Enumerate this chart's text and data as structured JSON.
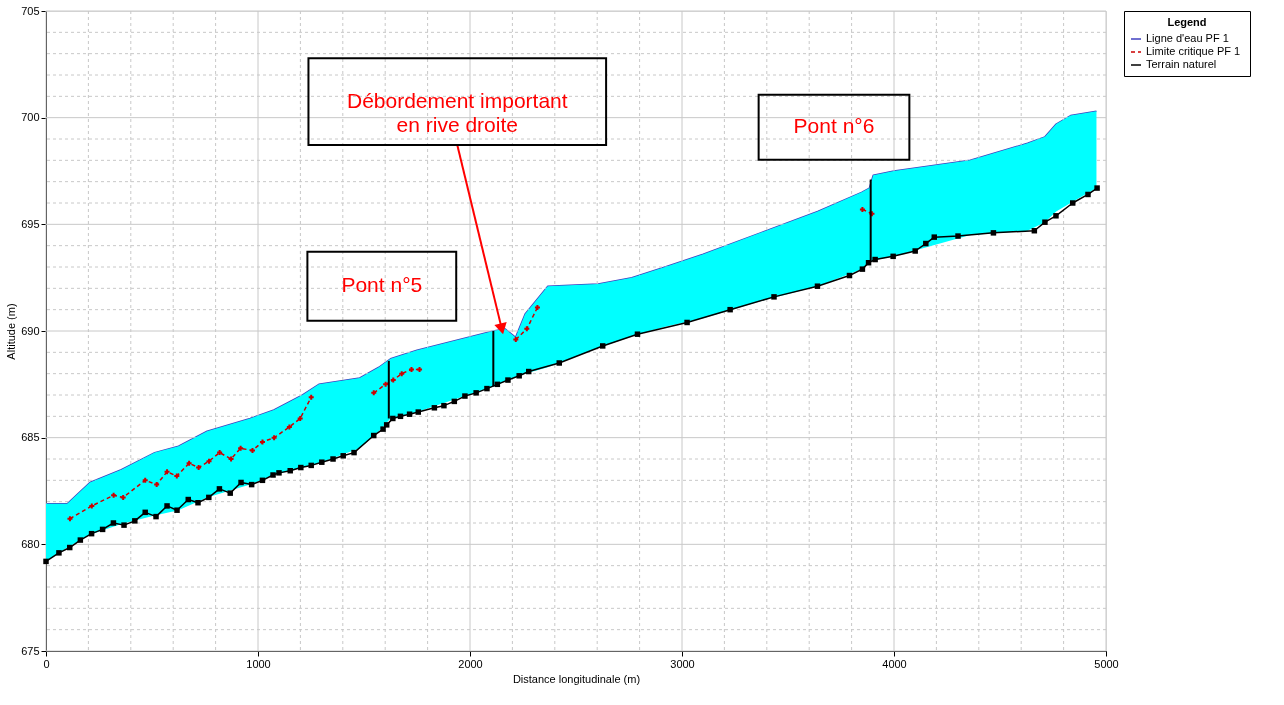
{
  "chart_data": {
    "type": "line",
    "xlabel": "Distance longitudinale (m)",
    "ylabel": "Altitude (m)",
    "legend_title": "Legend",
    "legend": "top right",
    "grid": true,
    "xlim": [
      0,
      5000
    ],
    "ylim": [
      675,
      705
    ],
    "xticks": [
      0,
      {
        "value": 200,
        "label": null
      },
      {
        "value": 400,
        "label": null
      },
      {
        "value": 600,
        "label": null
      },
      {
        "value": 800,
        "label": null
      },
      1000,
      {
        "value": 1200,
        "label": null
      },
      {
        "value": 1400,
        "label": null
      },
      {
        "value": 1600,
        "label": null
      },
      {
        "value": 1800,
        "label": null
      },
      2000,
      {
        "value": 2200,
        "label": null
      },
      {
        "value": 2400,
        "label": null
      },
      {
        "value": 2600,
        "label": null
      },
      {
        "value": 2800,
        "label": null
      },
      3000,
      {
        "value": 3200,
        "label": null
      },
      {
        "value": 3400,
        "label": null
      },
      {
        "value": 3600,
        "label": null
      },
      {
        "value": 3800,
        "label": null
      },
      4000,
      {
        "value": 4200,
        "label": null
      },
      {
        "value": 4400,
        "label": null
      },
      {
        "value": 4600,
        "label": null
      },
      {
        "value": 4800,
        "label": null
      },
      5000
    ],
    "yticks": [
      675,
      {
        "value": 676,
        "label": null
      },
      {
        "value": 677,
        "label": null
      },
      {
        "value": 678,
        "label": null
      },
      {
        "value": 679,
        "label": null
      },
      680,
      {
        "value": 681,
        "label": null
      },
      {
        "value": 682,
        "label": null
      },
      {
        "value": 683,
        "label": null
      },
      {
        "value": 684,
        "label": null
      },
      685,
      {
        "value": 686,
        "label": null
      },
      {
        "value": 687,
        "label": null
      },
      {
        "value": 688,
        "label": null
      },
      {
        "value": 689,
        "label": null
      },
      690,
      {
        "value": 691,
        "label": null
      },
      {
        "value": 692,
        "label": null
      },
      {
        "value": 693,
        "label": null
      },
      {
        "value": 694,
        "label": null
      },
      695,
      {
        "value": 696,
        "label": null
      },
      {
        "value": 697,
        "label": null
      },
      {
        "value": 698,
        "label": null
      },
      {
        "value": 699,
        "label": null
      },
      700,
      {
        "value": 701,
        "label": null
      },
      {
        "value": 702,
        "label": null
      },
      {
        "value": 703,
        "label": null
      },
      {
        "value": 704,
        "label": null
      },
      705
    ],
    "annotations": [
      {
        "text": "Débordement important\nen rive droite",
        "x": 2150,
        "y": 690.1
      },
      "Pont n°5",
      "Pont n°6"
    ],
    "series": [
      {
        "color": "#000000",
        "marker": "none",
        "x": [
          1617,
          1617
        ],
        "values": [
          685.9,
          688.6
        ]
      },
      {
        "color": "#000000",
        "marker": "none",
        "x": [
          2110,
          2110
        ],
        "values": [
          687.4,
          690.0
        ]
      },
      {
        "color": "#000000",
        "marker": "none",
        "x": [
          3890,
          3890
        ],
        "values": [
          693.3,
          697.1
        ]
      },
      {
        "name": "Ligne d'eau  PF 1",
        "color": "#4040c0",
        "marker": "none",
        "line_style": "solid",
        "x": [
          0,
          100,
          207,
          355,
          513,
          625,
          760,
          963,
          1075,
          1210,
          1287,
          1480,
          1570,
          1625,
          1750,
          2110,
          2165,
          2215,
          2260,
          2367,
          2605,
          2763,
          2920,
          3100,
          3370,
          3640,
          3847,
          3884,
          3902,
          4000,
          4360,
          4630,
          4712,
          4765,
          4833,
          4955
        ],
        "lower": [
          679.2,
          679.85,
          680.45,
          680.95,
          681.35,
          681.6,
          682.2,
          682.8,
          683.25,
          683.6,
          683.8,
          684.5,
          685.3,
          685.9,
          686.2,
          687.4,
          687.65,
          687.85,
          688.0,
          688.3,
          689.2,
          689.75,
          690.2,
          690.6,
          691.4,
          692.1,
          692.9,
          693.2,
          693.3,
          693.5,
          694.5,
          694.7,
          695.1,
          695.6,
          696.0,
          696.7
        ],
        "upper": [
          681.9,
          681.9,
          682.9,
          683.5,
          684.3,
          684.6,
          685.3,
          685.9,
          686.3,
          687.0,
          687.5,
          687.8,
          688.3,
          688.7,
          689.1,
          690.0,
          690.1,
          689.7,
          690.8,
          692.1,
          692.2,
          692.5,
          693.0,
          693.6,
          694.6,
          695.6,
          696.5,
          696.7,
          697.3,
          697.5,
          698.0,
          698.8,
          699.1,
          699.7,
          700.1,
          700.3
        ],
        "values": [
          681.9,
          681.9,
          682.9,
          683.5,
          684.3,
          684.6,
          685.3,
          685.9,
          686.3,
          687.0,
          687.5,
          687.8,
          688.3,
          688.7,
          689.1,
          690.0,
          690.1,
          689.7,
          690.8,
          692.1,
          692.2,
          692.5,
          693.0,
          693.6,
          694.6,
          695.6,
          696.5,
          696.7,
          697.3,
          697.5,
          698.0,
          698.8,
          699.1,
          699.7,
          700.1,
          700.3
        ]
      },
      {
        "name": "Limite critique  PF 1",
        "color": "#cc0000",
        "marker": "cross",
        "line_style": "dashed",
        "x": [
          113,
          216,
          319,
          364,
          468,
          522,
          571,
          617,
          675,
          720,
          769,
          819,
          873,
          918,
          974,
          1021,
          1076,
          1148,
          1199,
          1251,
          1400,
          1546,
          1602,
          1638,
          1678,
          1724,
          1762,
          2000,
          2216,
          2268,
          2318,
          3000,
          3851,
          3896
        ],
        "values": [
          681.2,
          681.8,
          682.3,
          682.2,
          683.0,
          682.8,
          683.4,
          683.2,
          683.8,
          683.6,
          683.9,
          684.3,
          684.0,
          684.5,
          684.4,
          684.8,
          685.0,
          685.5,
          685.9,
          686.9,
          null,
          687.1,
          687.5,
          687.7,
          688.0,
          688.2,
          688.2,
          null,
          689.6,
          690.1,
          691.1,
          null,
          695.7,
          695.5
        ]
      },
      {
        "name": "Terrain naturel",
        "color": "#000000",
        "marker": "square",
        "line_style": "solid",
        "x": [
          0,
          61,
          112,
          162,
          215,
          267,
          318,
          368,
          419,
          468,
          519,
          571,
          618,
          671,
          717,
          768,
          818,
          869,
          920,
          970,
          1021,
          1071,
          1099,
          1152,
          1202,
          1251,
          1301,
          1354,
          1402,
          1453,
          1546,
          1590,
          1607,
          1636,
          1672,
          1715,
          1756,
          1832,
          1877,
          1926,
          1976,
          2029,
          2080,
          2129,
          2179,
          2232,
          2277,
          2421,
          2626,
          2790,
          3024,
          3227,
          3434,
          3639,
          3790,
          3851,
          3880,
          3911,
          3996,
          4100,
          4150,
          4190,
          4302,
          4469,
          4662,
          4712,
          4764,
          4843,
          4915,
          4958
        ],
        "values": [
          679.2,
          679.6,
          679.85,
          680.2,
          680.5,
          680.7,
          681.0,
          680.9,
          681.1,
          681.5,
          681.3,
          681.8,
          681.6,
          682.1,
          681.95,
          682.2,
          682.6,
          682.4,
          682.9,
          682.8,
          683.0,
          683.25,
          683.35,
          683.45,
          683.6,
          683.7,
          683.85,
          684.0,
          684.15,
          684.3,
          685.1,
          685.4,
          685.6,
          685.9,
          686.0,
          686.1,
          686.2,
          686.4,
          686.5,
          686.7,
          686.95,
          687.1,
          687.3,
          687.5,
          687.7,
          687.9,
          688.1,
          688.5,
          689.3,
          689.85,
          690.4,
          691.0,
          691.6,
          692.1,
          692.6,
          692.9,
          693.2,
          693.35,
          693.5,
          693.75,
          694.1,
          694.4,
          694.45,
          694.6,
          694.7,
          695.1,
          695.4,
          696.0,
          696.4,
          696.7
        ]
      }
    ]
  }
}
